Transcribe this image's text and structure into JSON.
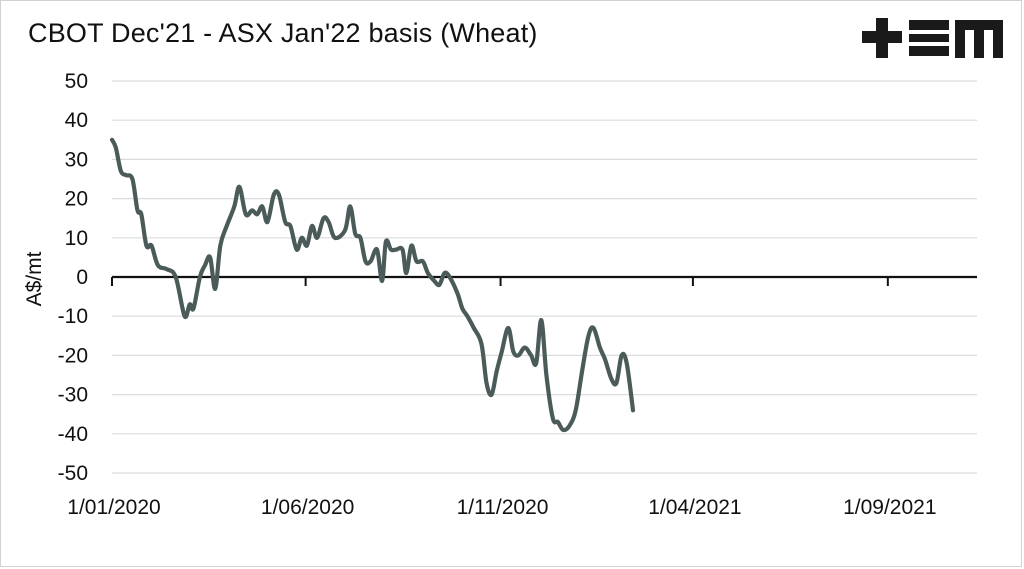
{
  "title": "CBOT Dec'21 - ASX Jan'22 basis (Wheat)",
  "logo_text": "+EM",
  "colors": {
    "line": "#4b5b5a",
    "grid": "#d9dcdd",
    "axis": "#111111",
    "logo": "#1a1a1a"
  },
  "chart_data": {
    "type": "line",
    "title": "CBOT Dec'21 - ASX Jan'22 basis (Wheat)",
    "xlabel": "",
    "ylabel": "A$/mt",
    "ylim": [
      -50,
      50
    ],
    "yticks": [
      50,
      40,
      30,
      20,
      10,
      0,
      -10,
      -20,
      -30,
      -40,
      -50
    ],
    "xlim": [
      "2020-01-01",
      "2021-11-10"
    ],
    "xticks": [
      {
        "date": "2020-01-01",
        "label": "1/01/2020"
      },
      {
        "date": "2020-06-01",
        "label": "1/06/2020"
      },
      {
        "date": "2020-11-01",
        "label": "1/11/2020"
      },
      {
        "date": "2021-04-01",
        "label": "1/04/2021"
      },
      {
        "date": "2021-09-01",
        "label": "1/09/2021"
      }
    ],
    "grid": true,
    "series": [
      {
        "points": [
          [
            "2020-01-01",
            35
          ],
          [
            "2020-01-04",
            33
          ],
          [
            "2020-01-08",
            27
          ],
          [
            "2020-01-12",
            26
          ],
          [
            "2020-01-17",
            25
          ],
          [
            "2020-01-21",
            17
          ],
          [
            "2020-01-24",
            16
          ],
          [
            "2020-01-28",
            8
          ],
          [
            "2020-02-01",
            8
          ],
          [
            "2020-02-06",
            3
          ],
          [
            "2020-02-13",
            2
          ],
          [
            "2020-02-20",
            0
          ],
          [
            "2020-02-27",
            -10
          ],
          [
            "2020-03-02",
            -7
          ],
          [
            "2020-03-05",
            -8
          ],
          [
            "2020-03-10",
            0
          ],
          [
            "2020-03-14",
            3
          ],
          [
            "2020-03-18",
            5
          ],
          [
            "2020-03-22",
            -3
          ],
          [
            "2020-03-26",
            8
          ],
          [
            "2020-03-31",
            13
          ],
          [
            "2020-04-06",
            18
          ],
          [
            "2020-04-10",
            23
          ],
          [
            "2020-04-15",
            16
          ],
          [
            "2020-04-20",
            17
          ],
          [
            "2020-04-24",
            16
          ],
          [
            "2020-04-28",
            18
          ],
          [
            "2020-05-02",
            14
          ],
          [
            "2020-05-07",
            21
          ],
          [
            "2020-05-11",
            21
          ],
          [
            "2020-05-16",
            14
          ],
          [
            "2020-05-20",
            13
          ],
          [
            "2020-05-25",
            7
          ],
          [
            "2020-05-29",
            10
          ],
          [
            "2020-06-02",
            8
          ],
          [
            "2020-06-06",
            13
          ],
          [
            "2020-06-10",
            10
          ],
          [
            "2020-06-15",
            15
          ],
          [
            "2020-06-19",
            14
          ],
          [
            "2020-06-24",
            10
          ],
          [
            "2020-07-02",
            12
          ],
          [
            "2020-07-06",
            18
          ],
          [
            "2020-07-10",
            11
          ],
          [
            "2020-07-14",
            10
          ],
          [
            "2020-07-18",
            4
          ],
          [
            "2020-07-22",
            4
          ],
          [
            "2020-07-27",
            7
          ],
          [
            "2020-07-31",
            -1
          ],
          [
            "2020-08-03",
            9
          ],
          [
            "2020-08-07",
            7
          ],
          [
            "2020-08-11",
            7
          ],
          [
            "2020-08-16",
            7
          ],
          [
            "2020-08-19",
            1
          ],
          [
            "2020-08-23",
            8
          ],
          [
            "2020-08-27",
            4
          ],
          [
            "2020-09-01",
            4
          ],
          [
            "2020-09-05",
            1
          ],
          [
            "2020-09-10",
            -1
          ],
          [
            "2020-09-14",
            -2
          ],
          [
            "2020-09-18",
            1
          ],
          [
            "2020-09-22",
            0
          ],
          [
            "2020-09-28",
            -4
          ],
          [
            "2020-10-02",
            -8
          ],
          [
            "2020-10-06",
            -10
          ],
          [
            "2020-10-11",
            -13
          ],
          [
            "2020-10-17",
            -17
          ],
          [
            "2020-10-21",
            -27
          ],
          [
            "2020-10-25",
            -30
          ],
          [
            "2020-10-29",
            -24
          ],
          [
            "2020-11-02",
            -19
          ],
          [
            "2020-11-07",
            -13
          ],
          [
            "2020-11-11",
            -19
          ],
          [
            "2020-11-15",
            -20
          ],
          [
            "2020-11-20",
            -18
          ],
          [
            "2020-11-25",
            -20
          ],
          [
            "2020-11-29",
            -22
          ],
          [
            "2020-12-03",
            -11
          ],
          [
            "2020-12-07",
            -25
          ],
          [
            "2020-12-12",
            -36
          ],
          [
            "2020-12-16",
            -37
          ],
          [
            "2020-12-20",
            -39
          ],
          [
            "2020-12-25",
            -38
          ],
          [
            "2020-12-30",
            -34
          ],
          [
            "2021-01-04",
            -24
          ],
          [
            "2021-01-09",
            -15
          ],
          [
            "2021-01-13",
            -13
          ],
          [
            "2021-01-18",
            -18
          ],
          [
            "2021-01-22",
            -21
          ],
          [
            "2021-01-27",
            -26
          ],
          [
            "2021-01-31",
            -27
          ],
          [
            "2021-02-04",
            -20
          ],
          [
            "2021-02-08",
            -22
          ],
          [
            "2021-02-13",
            -34
          ]
        ]
      }
    ]
  }
}
